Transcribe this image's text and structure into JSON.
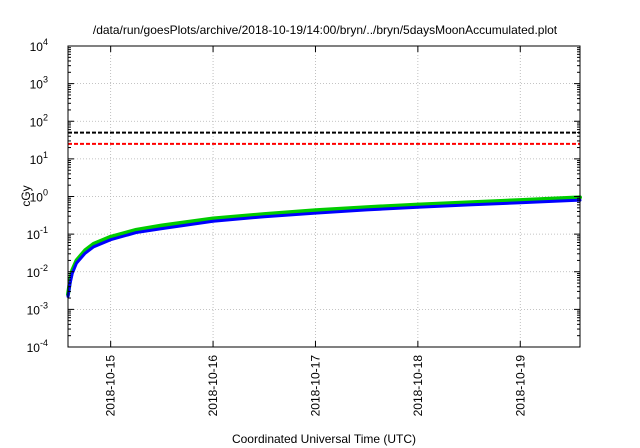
{
  "chart_data": {
    "type": "line",
    "title": "/data/run/goesPlots/archive/2018-10-19/14:00/bryn/../bryn/5daysMoonAccumulated.plot",
    "xlabel": "Coordinated Universal Time (UTC)",
    "ylabel": "cGy",
    "yscale": "log",
    "ylim": [
      0.0001,
      10000
    ],
    "xlim": [
      "2018-10-14 14:00",
      "2018-10-19 14:00"
    ],
    "grid": true,
    "x_ticks": [
      "2018-10-15",
      "2018-10-16",
      "2018-10-17",
      "2018-10-18",
      "2018-10-19"
    ],
    "y_ticks": [
      {
        "value": 0.0001,
        "base": "10",
        "exp": "-4"
      },
      {
        "value": 0.001,
        "base": "10",
        "exp": "-3"
      },
      {
        "value": 0.01,
        "base": "10",
        "exp": "-2"
      },
      {
        "value": 0.1,
        "base": "10",
        "exp": "-1"
      },
      {
        "value": 1,
        "base": "10",
        "exp": "0"
      },
      {
        "value": 10,
        "base": "10",
        "exp": "1"
      },
      {
        "value": 100,
        "base": "10",
        "exp": "2"
      },
      {
        "value": 1000,
        "base": "10",
        "exp": "3"
      },
      {
        "value": 10000,
        "base": "10",
        "exp": "4"
      }
    ],
    "reference_lines": [
      {
        "y": 50,
        "color": "#000000",
        "style": "dashed"
      },
      {
        "y": 25,
        "color": "#ff0000",
        "style": "dashed"
      }
    ],
    "series": [
      {
        "color": "#00cc00",
        "x": [
          "2018-10-14 14:00",
          "2018-10-14 14:30",
          "2018-10-14 15:00",
          "2018-10-14 16:00",
          "2018-10-14 18:00",
          "2018-10-14 20:00",
          "2018-10-15 00:00",
          "2018-10-15 06:00",
          "2018-10-15 12:00",
          "2018-10-16 00:00",
          "2018-10-16 12:00",
          "2018-10-17 00:00",
          "2018-10-17 12:00",
          "2018-10-18 00:00",
          "2018-10-18 12:00",
          "2018-10-19 00:00",
          "2018-10-19 14:00"
        ],
        "y": [
          0.0025,
          0.006,
          0.011,
          0.02,
          0.037,
          0.055,
          0.085,
          0.13,
          0.17,
          0.26,
          0.34,
          0.43,
          0.52,
          0.61,
          0.7,
          0.8,
          0.95
        ]
      },
      {
        "color": "#0000ff",
        "x": [
          "2018-10-14 14:00",
          "2018-10-14 14:30",
          "2018-10-14 15:00",
          "2018-10-14 16:00",
          "2018-10-14 18:00",
          "2018-10-14 20:00",
          "2018-10-15 00:00",
          "2018-10-15 06:00",
          "2018-10-15 12:00",
          "2018-10-16 00:00",
          "2018-10-16 12:00",
          "2018-10-17 00:00",
          "2018-10-17 12:00",
          "2018-10-18 00:00",
          "2018-10-18 12:00",
          "2018-10-19 00:00",
          "2018-10-19 14:00"
        ],
        "y": [
          0.0022,
          0.005,
          0.009,
          0.017,
          0.031,
          0.046,
          0.071,
          0.11,
          0.14,
          0.22,
          0.29,
          0.36,
          0.44,
          0.52,
          0.6,
          0.68,
          0.8
        ]
      }
    ]
  }
}
